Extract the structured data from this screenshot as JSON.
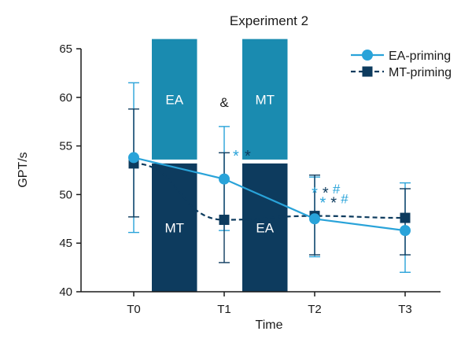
{
  "chart_data": {
    "type": "line",
    "title": "Experiment 2",
    "xlabel": "Time",
    "ylabel": "GPT/s",
    "categories": [
      "T0",
      "T1",
      "T2",
      "T3"
    ],
    "ylim": [
      40,
      65
    ],
    "yticks": [
      40,
      45,
      50,
      55,
      60,
      65
    ],
    "grid": false,
    "legend_position": "top-right",
    "series": [
      {
        "name": "EA-priming",
        "style": "solid",
        "marker": "circle",
        "color": "#29a3d9",
        "values": [
          53.8,
          51.6,
          47.5,
          46.3
        ],
        "err_low": [
          46.1,
          46.3,
          43.6,
          42.0
        ],
        "err_high": [
          61.5,
          57.0,
          51.8,
          51.2
        ]
      },
      {
        "name": "MT-priming",
        "style": "dashed",
        "marker": "square",
        "color": "#0d3b5e",
        "values": [
          53.2,
          47.4,
          47.8,
          47.6
        ],
        "err_low": [
          47.7,
          43.0,
          43.8,
          43.8
        ],
        "err_high": [
          58.8,
          54.3,
          52.0,
          50.6
        ]
      }
    ],
    "bands": [
      {
        "label": "EA",
        "x_from": 0.2,
        "x_to": 0.7,
        "y_from": 53.6,
        "y_to": 66.0,
        "color": "#1a8bb0"
      },
      {
        "label": "MT",
        "x_from": 0.2,
        "x_to": 0.7,
        "y_from": 40.0,
        "y_to": 53.2,
        "color": "#0d3b5e"
      },
      {
        "label": "MT",
        "x_from": 1.2,
        "x_to": 1.7,
        "y_from": 53.6,
        "y_to": 66.0,
        "color": "#1a8bb0"
      },
      {
        "label": "EA",
        "x_from": 1.2,
        "x_to": 1.7,
        "y_from": 40.0,
        "y_to": 53.2,
        "color": "#0d3b5e"
      }
    ],
    "annotations": [
      {
        "text": "&",
        "x": 1.0,
        "y": 59.5,
        "color": "#1a1a1a",
        "kind": "amp"
      },
      {
        "text": "*",
        "x": 1.13,
        "y": 54.4,
        "color": "#29a3d9",
        "kind": "sig"
      },
      {
        "text": "*",
        "x": 1.26,
        "y": 54.4,
        "color": "#0d3b5e",
        "kind": "sig"
      },
      {
        "text": "*",
        "x": 2.0,
        "y": 50.6,
        "color": "#29a3d9",
        "kind": "sig"
      },
      {
        "text": "*",
        "x": 2.12,
        "y": 50.6,
        "color": "#0d3b5e",
        "kind": "sig"
      },
      {
        "text": "#",
        "x": 2.24,
        "y": 50.6,
        "color": "#29a3d9",
        "kind": "hash"
      },
      {
        "text": "*",
        "x": 2.09,
        "y": 49.6,
        "color": "#29a3d9",
        "kind": "sig"
      },
      {
        "text": "*",
        "x": 2.21,
        "y": 49.6,
        "color": "#0d3b5e",
        "kind": "sig"
      },
      {
        "text": "#",
        "x": 2.33,
        "y": 49.6,
        "color": "#29a3d9",
        "kind": "hash"
      }
    ]
  }
}
